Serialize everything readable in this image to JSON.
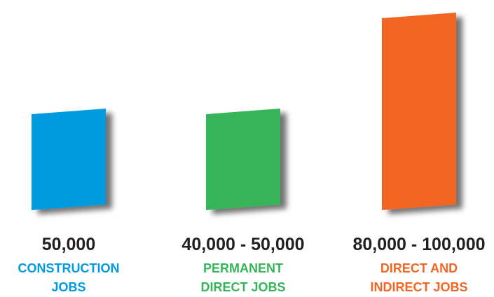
{
  "chart_data": {
    "type": "bar",
    "categories": [
      [
        "CONSTRUCTION",
        "JOBS"
      ],
      [
        "PERMANENT",
        "DIRECT JOBS"
      ],
      [
        "DIRECT AND",
        "INDIRECT JOBS"
      ]
    ],
    "values": [
      50000,
      50000,
      100000
    ],
    "value_labels": [
      "50,000",
      "40,000 - 50,000",
      "80,000 - 100,000"
    ],
    "colors": [
      "#009bdf",
      "#36b45a",
      "#f26522"
    ],
    "label_color": "#231f20",
    "grid": false,
    "legend": "none"
  }
}
